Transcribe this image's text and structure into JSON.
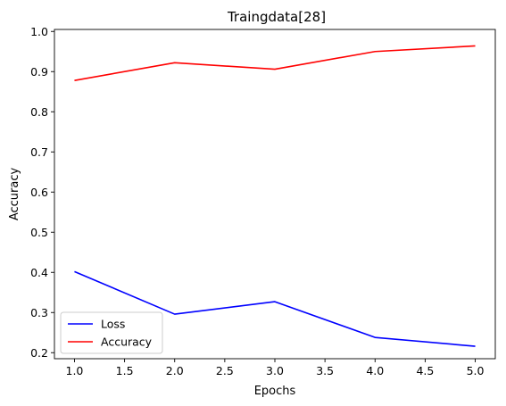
{
  "chart_data": {
    "type": "line",
    "title": "Traingdata[28]",
    "xlabel": "Epochs",
    "ylabel": "Accuracy",
    "x": [
      1.0,
      2.0,
      3.0,
      4.0,
      5.0
    ],
    "xlim": [
      0.8,
      5.2
    ],
    "ylim": [
      0.185,
      1.005
    ],
    "xticks": [
      1.0,
      1.5,
      2.0,
      2.5,
      3.0,
      3.5,
      4.0,
      4.5,
      5.0
    ],
    "xtick_labels": [
      "1.0",
      "1.5",
      "2.0",
      "2.5",
      "3.0",
      "3.5",
      "4.0",
      "4.5",
      "5.0"
    ],
    "yticks": [
      0.2,
      0.3,
      0.4,
      0.5,
      0.6,
      0.7,
      0.8,
      0.9,
      1.0
    ],
    "ytick_labels": [
      "0.2",
      "0.3",
      "0.4",
      "0.5",
      "0.6",
      "0.7",
      "0.8",
      "0.9",
      "1.0"
    ],
    "grid": false,
    "legend_position": "bottom-left",
    "series": [
      {
        "name": "Loss",
        "color": "#0000ff",
        "values": [
          0.402,
          0.296,
          0.327,
          0.238,
          0.216
        ]
      },
      {
        "name": "Accuracy",
        "color": "#ff0000",
        "values": [
          0.878,
          0.922,
          0.906,
          0.95,
          0.964
        ]
      }
    ]
  }
}
